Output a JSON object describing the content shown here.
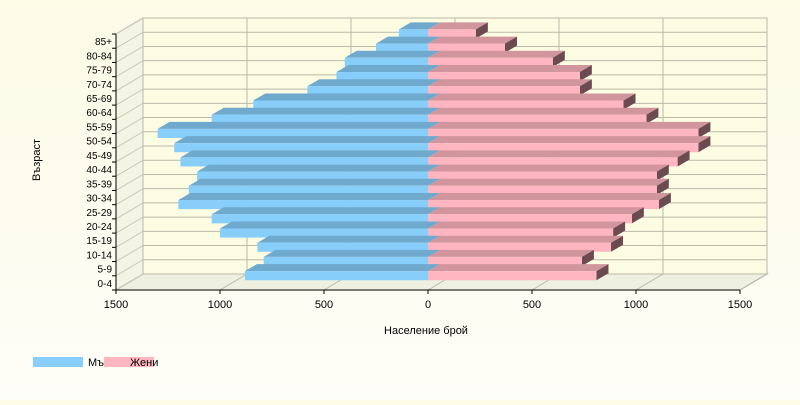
{
  "chart_data": {
    "type": "bar",
    "orientation": "horizontal",
    "style": "population-pyramid-3d",
    "xlabel": "Население брой",
    "ylabel": "Възраст",
    "xlim": [
      -1500,
      1500
    ],
    "x_ticks": [
      "1500",
      "1000",
      "500",
      "0",
      "500",
      "1000",
      "1500"
    ],
    "grid": true,
    "legend_position": "bottom-left",
    "categories": [
      "0-4",
      "5-9",
      "10-14",
      "15-19",
      "20-24",
      "25-29",
      "30-34",
      "35-39",
      "40-44",
      "45-49",
      "50-54",
      "55-59",
      "60-64",
      "65-69",
      "70-74",
      "75-79",
      "80-84",
      "85+"
    ],
    "series": [
      {
        "name": "Мъже",
        "color": "#87cefa",
        "side_color": "#4f7fa3",
        "values": [
          880,
          790,
          820,
          1000,
          1040,
          1200,
          1150,
          1110,
          1190,
          1220,
          1300,
          1040,
          840,
          580,
          440,
          400,
          250,
          140
        ]
      },
      {
        "name": "Жени",
        "color": "#ffb6c1",
        "side_color": "#6b4a50",
        "values": [
          810,
          740,
          880,
          890,
          980,
          1110,
          1100,
          1100,
          1200,
          1300,
          1300,
          1050,
          940,
          730,
          730,
          600,
          370,
          230
        ]
      }
    ]
  }
}
